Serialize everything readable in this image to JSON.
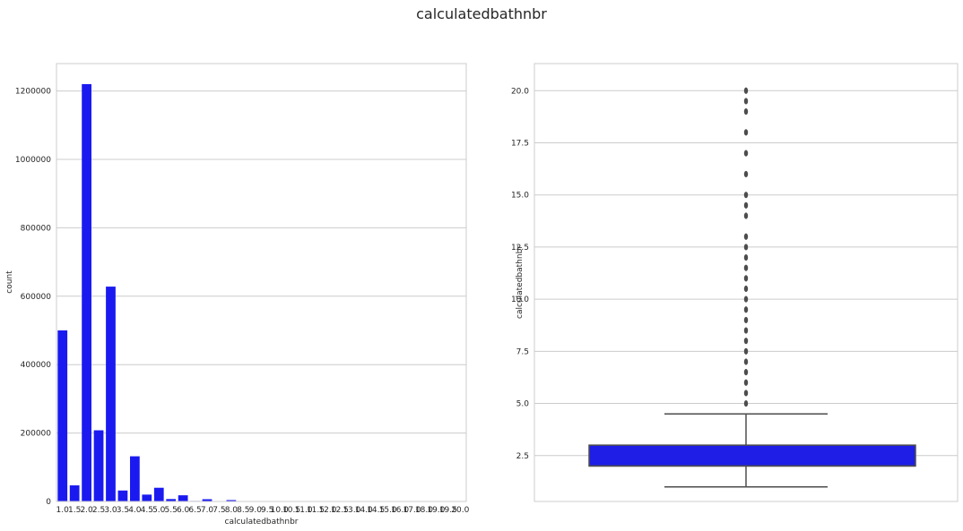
{
  "figure": {
    "suptitle": "calculatedbathnbr"
  },
  "colors": {
    "bar": "#1a1af0",
    "box": "#1e1ee6",
    "grid": "#cccccc",
    "axis": "#cccccc",
    "box_line": "#4d4d4d",
    "flier": "#4d4d4d"
  },
  "chart_data": [
    {
      "type": "bar",
      "xlabel": "calculatedbathnbr",
      "ylabel": "count",
      "ylim": [
        0,
        1280000
      ],
      "yticks": [
        0,
        200000,
        400000,
        600000,
        800000,
        1000000,
        1200000
      ],
      "grid": true,
      "categories": [
        "1.0",
        "1.5",
        "2.0",
        "2.5",
        "3.0",
        "3.5",
        "4.0",
        "4.5",
        "5.0",
        "5.5",
        "6.0",
        "6.5",
        "7.0",
        "7.5",
        "8.0",
        "8.5",
        "9.0",
        "9.5",
        "10.0",
        "10.5",
        "11.0",
        "11.5",
        "12.0",
        "12.5",
        "13.0",
        "14.0",
        "14.5",
        "15.0",
        "16.0",
        "17.0",
        "18.0",
        "19.0",
        "19.5",
        "20.0"
      ],
      "values": [
        500000,
        47000,
        1220000,
        208000,
        628000,
        32000,
        132000,
        20000,
        40000,
        7000,
        18000,
        1500,
        6500,
        500,
        4000,
        200,
        1000,
        100,
        500,
        50,
        150,
        30,
        100,
        20,
        50,
        30,
        10,
        20,
        15,
        5,
        10,
        5,
        3,
        10
      ]
    },
    {
      "type": "box",
      "ylabel": "calculatedbathnbr",
      "ylim": [
        0.3,
        21.3
      ],
      "yticks": [
        2.5,
        5.0,
        7.5,
        10.0,
        12.5,
        15.0,
        17.5,
        20.0
      ],
      "grid": true,
      "q1": 2.0,
      "median": 2.0,
      "q3": 3.0,
      "whisker_low": 1.0,
      "whisker_high": 4.5,
      "fliers": [
        5.0,
        5.5,
        6.0,
        6.5,
        7.0,
        7.5,
        8.0,
        8.5,
        9.0,
        9.5,
        10.0,
        10.5,
        11.0,
        11.5,
        12.0,
        12.5,
        13.0,
        14.0,
        14.5,
        15.0,
        16.0,
        17.0,
        18.0,
        19.0,
        19.5,
        20.0
      ]
    }
  ]
}
